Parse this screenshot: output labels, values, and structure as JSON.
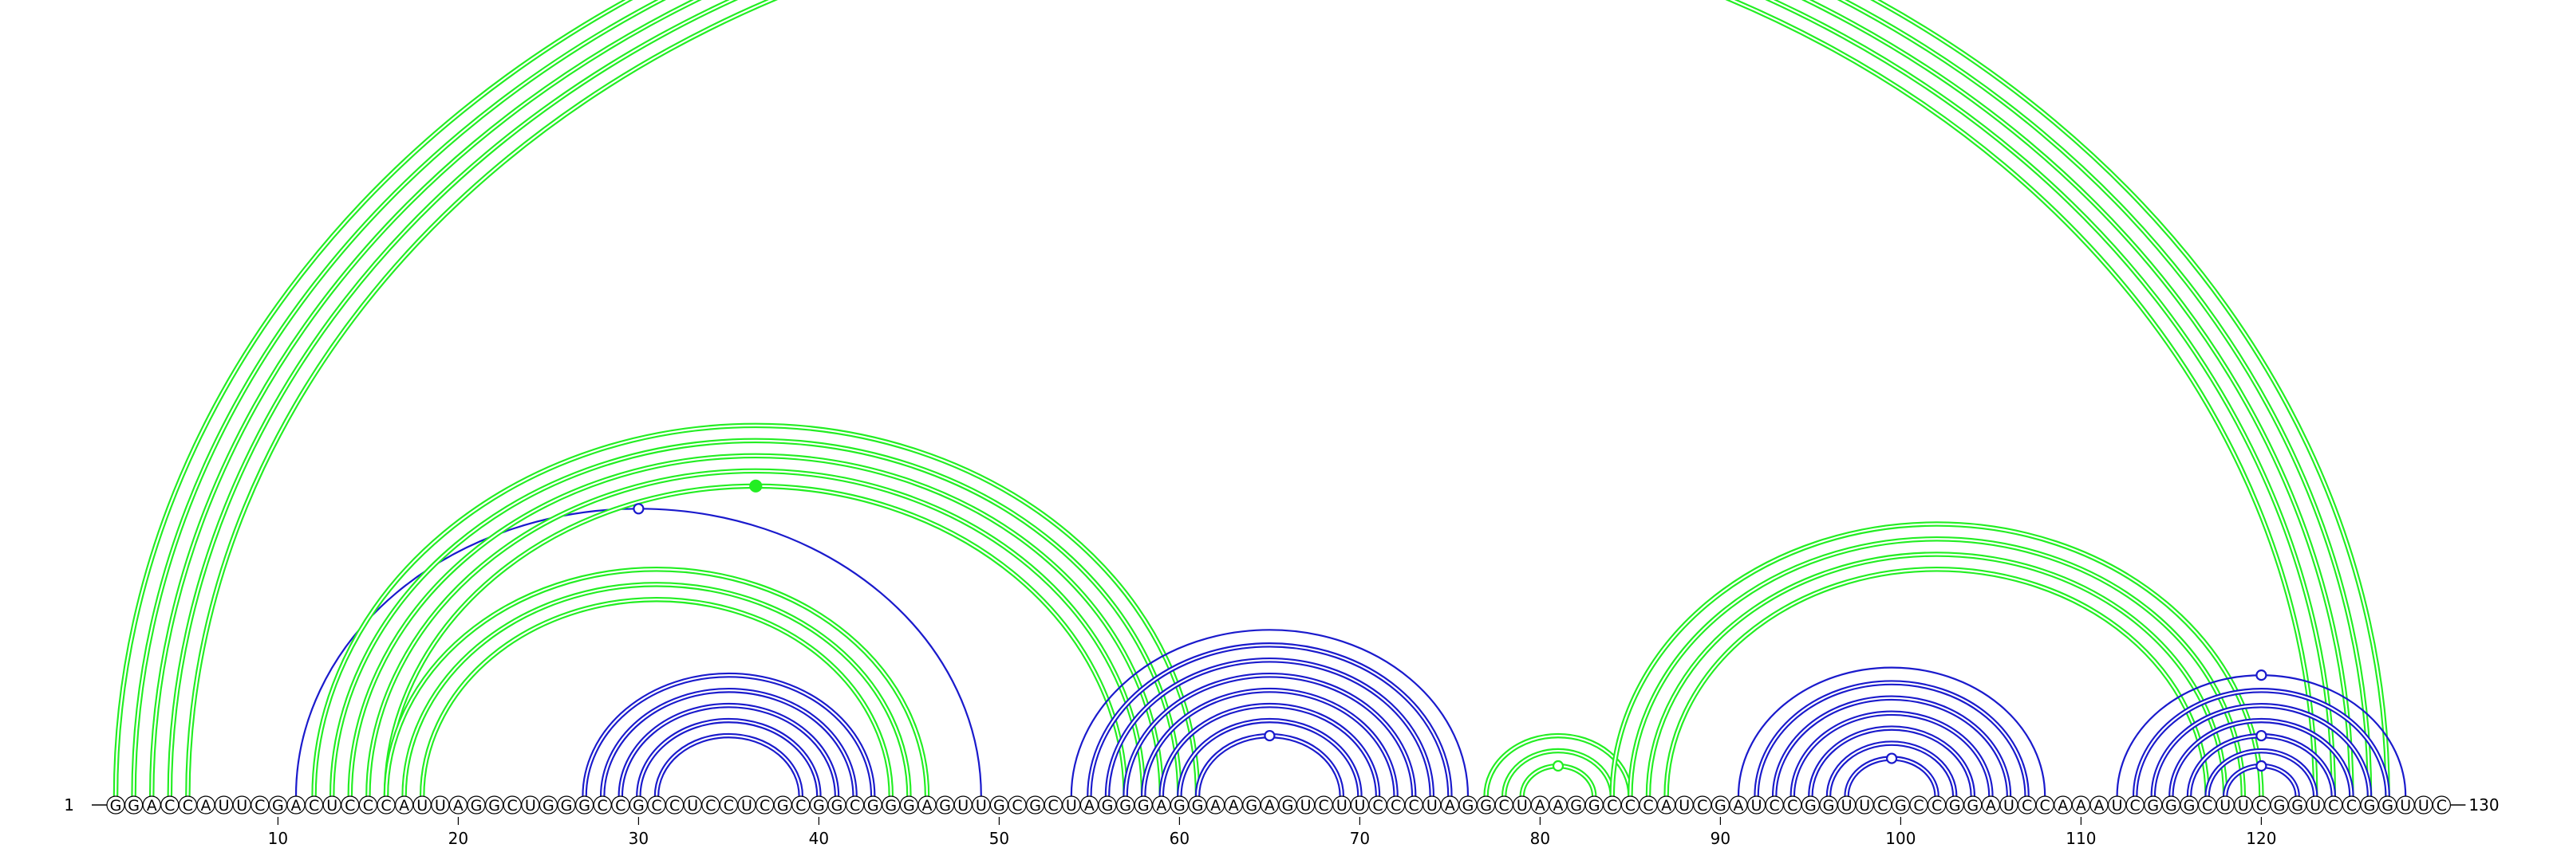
{
  "sequence": "GGACCAUUCGACUCCCAUUAGGCUGGGCCGCCUCCUCGCGGCGGGAGUUGCGCUAGGGAGGAAGAGUCUUCCCUAGGCUAAGGCCCAUCGAUCCGGUUCGCCGGAUCCAAAUCGGGCUUCGGUCCGGUUC",
  "length": 130,
  "start_label": "1",
  "end_label": "130",
  "tick_values": [
    10,
    20,
    30,
    40,
    50,
    60,
    70,
    80,
    90,
    100,
    110,
    120
  ],
  "colors": {
    "green": "#22ee22",
    "blue": "#1a1acc"
  },
  "arcs": [
    {
      "i": 1,
      "j": 127,
      "color": "green",
      "double": true
    },
    {
      "i": 2,
      "j": 126,
      "color": "green",
      "double": true
    },
    {
      "i": 3,
      "j": 125,
      "color": "green",
      "double": true
    },
    {
      "i": 4,
      "j": 124,
      "color": "green",
      "double": true
    },
    {
      "i": 5,
      "j": 123,
      "color": "green",
      "double": true
    },
    {
      "i": 11,
      "j": 49,
      "color": "blue",
      "double": false
    },
    {
      "i": 12,
      "j": 61,
      "color": "green",
      "double": true
    },
    {
      "i": 13,
      "j": 60,
      "color": "green",
      "double": true
    },
    {
      "i": 14,
      "j": 59,
      "color": "green",
      "double": true
    },
    {
      "i": 15,
      "j": 58,
      "color": "green",
      "double": true
    },
    {
      "i": 16,
      "j": 57,
      "color": "green",
      "double": true
    },
    {
      "i": 16,
      "j": 46,
      "color": "green",
      "double": true
    },
    {
      "i": 17,
      "j": 45,
      "color": "green",
      "double": true
    },
    {
      "i": 18,
      "j": 44,
      "color": "green",
      "double": true
    },
    {
      "i": 27,
      "j": 43,
      "color": "blue",
      "double": true
    },
    {
      "i": 28,
      "j": 42,
      "color": "blue",
      "double": true
    },
    {
      "i": 29,
      "j": 41,
      "color": "blue",
      "double": true
    },
    {
      "i": 30,
      "j": 40,
      "color": "blue",
      "double": true
    },
    {
      "i": 31,
      "j": 39,
      "color": "blue",
      "double": true
    },
    {
      "i": 54,
      "j": 76,
      "color": "blue",
      "double": false
    },
    {
      "i": 55,
      "j": 75,
      "color": "blue",
      "double": true
    },
    {
      "i": 56,
      "j": 74,
      "color": "blue",
      "double": true
    },
    {
      "i": 57,
      "j": 73,
      "color": "blue",
      "double": true
    },
    {
      "i": 58,
      "j": 72,
      "color": "blue",
      "double": true
    },
    {
      "i": 59,
      "j": 71,
      "color": "blue",
      "double": true
    },
    {
      "i": 60,
      "j": 70,
      "color": "blue",
      "double": true
    },
    {
      "i": 61,
      "j": 69,
      "color": "blue",
      "double": true
    },
    {
      "i": 77,
      "j": 85,
      "color": "green",
      "double": true
    },
    {
      "i": 78,
      "j": 84,
      "color": "green",
      "double": true
    },
    {
      "i": 79,
      "j": 83,
      "color": "green",
      "double": true
    },
    {
      "i": 84,
      "j": 120,
      "color": "green",
      "double": true
    },
    {
      "i": 85,
      "j": 119,
      "color": "green",
      "double": true
    },
    {
      "i": 86,
      "j": 118,
      "color": "green",
      "double": true
    },
    {
      "i": 87,
      "j": 117,
      "color": "green",
      "double": true
    },
    {
      "i": 91,
      "j": 108,
      "color": "blue",
      "double": false
    },
    {
      "i": 92,
      "j": 107,
      "color": "blue",
      "double": true
    },
    {
      "i": 93,
      "j": 106,
      "color": "blue",
      "double": true
    },
    {
      "i": 94,
      "j": 105,
      "color": "blue",
      "double": true
    },
    {
      "i": 95,
      "j": 104,
      "color": "blue",
      "double": true
    },
    {
      "i": 96,
      "j": 103,
      "color": "blue",
      "double": true
    },
    {
      "i": 97,
      "j": 102,
      "color": "blue",
      "double": true
    },
    {
      "i": 112,
      "j": 128,
      "color": "blue",
      "double": false
    },
    {
      "i": 113,
      "j": 127,
      "color": "blue",
      "double": true
    },
    {
      "i": 114,
      "j": 126,
      "color": "blue",
      "double": true
    },
    {
      "i": 115,
      "j": 125,
      "color": "blue",
      "double": true
    },
    {
      "i": 116,
      "j": 124,
      "color": "blue",
      "double": true
    },
    {
      "i": 117,
      "j": 123,
      "color": "blue",
      "double": true
    },
    {
      "i": 118,
      "j": 122,
      "color": "blue",
      "double": true
    }
  ],
  "markers": [
    {
      "i": 16,
      "j": 57,
      "color": "green",
      "filled": true
    },
    {
      "i": 11,
      "j": 49,
      "color": "blue",
      "filled": false
    },
    {
      "i": 61,
      "j": 69,
      "color": "blue",
      "filled": false
    },
    {
      "i": 79,
      "j": 83,
      "color": "green",
      "filled": false
    },
    {
      "i": 97,
      "j": 102,
      "color": "blue",
      "filled": false
    },
    {
      "i": 112,
      "j": 128,
      "color": "blue",
      "filled": false
    },
    {
      "i": 116,
      "j": 124,
      "color": "blue",
      "filled": false
    },
    {
      "i": 118,
      "j": 122,
      "color": "blue",
      "filled": false
    }
  ]
}
